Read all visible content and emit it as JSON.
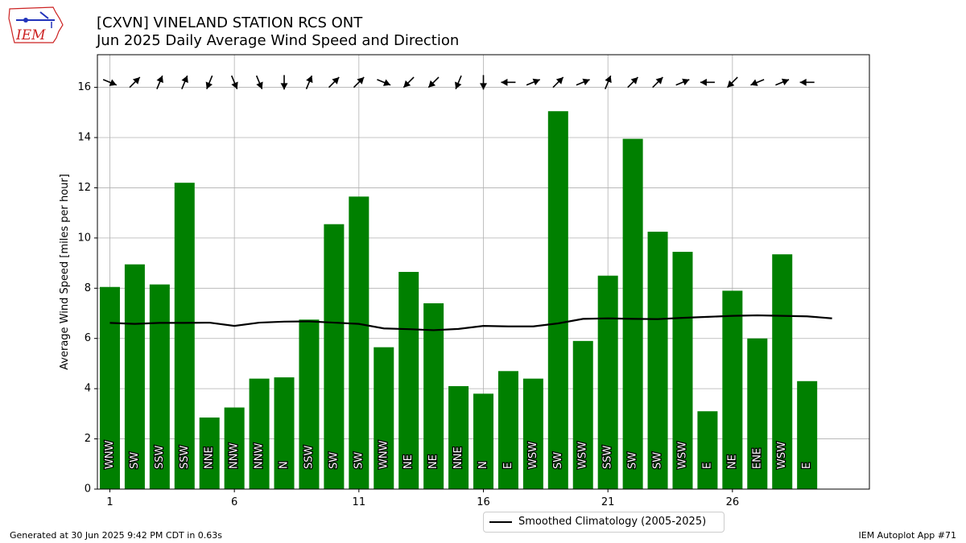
{
  "header": {
    "title_line1": "[CXVN] VINELAND STATION RCS  ONT",
    "title_line2": "Jun 2025 Daily Average Wind Speed and Direction"
  },
  "logo": {
    "text": "IEM"
  },
  "footer": {
    "generated": "Generated at 30 Jun 2025 9:42 PM CDT in 0.63s",
    "app": "IEM Autoplot App #71"
  },
  "legend": {
    "label": "Smoothed Climatology (2005-2025)"
  },
  "colors": {
    "bar": "#008000",
    "climatology": "#000000",
    "grid": "#b0b0b0",
    "logo_red": "#cc2222",
    "logo_blue": "#2233bb"
  },
  "chart_data": {
    "type": "bar",
    "ylabel": "Average Wind Speed [miles per hour]",
    "xlabel": "",
    "ylim": [
      0,
      17.3
    ],
    "xlim": [
      0.5,
      31.5
    ],
    "grid": true,
    "legend_position": "bottom-center",
    "xticks": [
      1,
      6,
      11,
      16,
      21,
      26
    ],
    "yticks": [
      0,
      2,
      4,
      6,
      8,
      10,
      12,
      14,
      16
    ],
    "days": [
      1,
      2,
      3,
      4,
      5,
      6,
      7,
      8,
      9,
      10,
      11,
      12,
      13,
      14,
      15,
      16,
      17,
      18,
      19,
      20,
      21,
      22,
      23,
      24,
      25,
      26,
      27,
      28,
      29
    ],
    "speeds": [
      8.05,
      8.95,
      8.15,
      12.2,
      2.85,
      3.25,
      4.4,
      4.45,
      6.75,
      10.55,
      11.65,
      5.65,
      8.65,
      7.4,
      4.1,
      3.8,
      4.7,
      4.4,
      15.05,
      5.9,
      8.5,
      13.95,
      10.25,
      9.45,
      3.1,
      7.9,
      6.0,
      9.35,
      4.3
    ],
    "directions": [
      "WNW",
      "SW",
      "SSW",
      "SSW",
      "NNE",
      "NNW",
      "NNW",
      "N",
      "SSW",
      "SW",
      "SW",
      "WNW",
      "NE",
      "NE",
      "NNE",
      "N",
      "E",
      "WSW",
      "SW",
      "WSW",
      "SSW",
      "SW",
      "SW",
      "WSW",
      "E",
      "NE",
      "ENE",
      "WSW",
      "E"
    ],
    "climatology": {
      "name": "Smoothed Climatology (2005-2025)",
      "x": [
        1,
        2,
        3,
        4,
        5,
        6,
        7,
        8,
        9,
        10,
        11,
        12,
        13,
        14,
        15,
        16,
        17,
        18,
        19,
        20,
        21,
        22,
        23,
        24,
        25,
        26,
        27,
        28,
        29,
        30
      ],
      "y": [
        6.62,
        6.58,
        6.62,
        6.62,
        6.63,
        6.5,
        6.63,
        6.67,
        6.68,
        6.63,
        6.58,
        6.4,
        6.37,
        6.33,
        6.38,
        6.5,
        6.48,
        6.48,
        6.6,
        6.78,
        6.8,
        6.78,
        6.77,
        6.82,
        6.86,
        6.9,
        6.92,
        6.9,
        6.88,
        6.8
      ]
    }
  }
}
